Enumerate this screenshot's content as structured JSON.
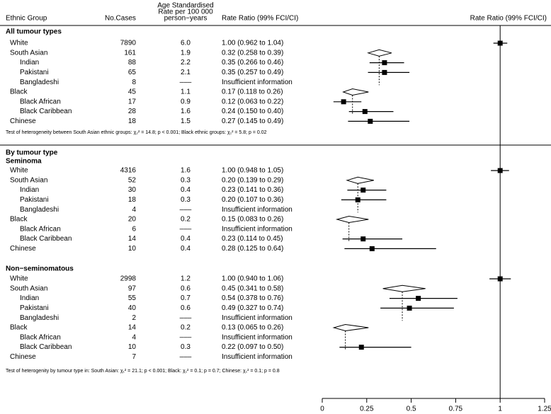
{
  "chart_data": {
    "type": "forest",
    "col_group": "Ethnic Group",
    "col_cases": "No.Cases",
    "col_rate": [
      "Age Standardised",
      "Rate per 100 000",
      "person−years"
    ],
    "col_ratio": "Rate Ratio (99% FCI/CI)",
    "axis_title": "Rate Ratio (99% FCI/CI)",
    "xlim": [
      0,
      1.25
    ],
    "xticks": [
      0,
      0.25,
      0.5,
      0.75,
      1,
      1.25
    ],
    "reference": 1,
    "color": "#000000",
    "groups": [
      {
        "heading": "All tumour types",
        "rows": [
          {
            "name": "White",
            "cases": 7890,
            "rate": "6.0",
            "ratio": 1.0,
            "lo": 0.962,
            "hi": 1.04,
            "ratio_label": "1.00 (0.962 to 1.04)"
          },
          {
            "name": "South Asian",
            "cases": 161,
            "rate": "1.9",
            "ratio": 0.32,
            "lo": 0.258,
            "hi": 0.39,
            "ratio_label": "0.32 (0.258 to 0.39)",
            "children": [
              {
                "name": "Indian",
                "cases": 88,
                "rate": "2.2",
                "ratio": 0.35,
                "lo": 0.266,
                "hi": 0.46,
                "ratio_label": "0.35 (0.266 to 0.46)"
              },
              {
                "name": "Pakistani",
                "cases": 65,
                "rate": "2.1",
                "ratio": 0.35,
                "lo": 0.257,
                "hi": 0.49,
                "ratio_label": "0.35 (0.257 to 0.49)"
              },
              {
                "name": "Bangladeshi",
                "cases": 8,
                "rate": "–––",
                "ratio": null,
                "lo": null,
                "hi": null,
                "ratio_label": "Insufficient information"
              }
            ]
          },
          {
            "name": "Black",
            "cases": 45,
            "rate": "1.1",
            "ratio": 0.17,
            "lo": 0.118,
            "hi": 0.26,
            "ratio_label": "0.17 (0.118 to 0.26)",
            "children": [
              {
                "name": "Black African",
                "cases": 17,
                "rate": "0.9",
                "ratio": 0.12,
                "lo": 0.063,
                "hi": 0.22,
                "ratio_label": "0.12 (0.063 to 0.22)"
              },
              {
                "name": "Black Caribbean",
                "cases": 28,
                "rate": "1.6",
                "ratio": 0.24,
                "lo": 0.15,
                "hi": 0.4,
                "ratio_label": "0.24 (0.150 to 0.40)"
              }
            ]
          },
          {
            "name": "Chinese",
            "cases": 18,
            "rate": "1.5",
            "ratio": 0.27,
            "lo": 0.145,
            "hi": 0.49,
            "ratio_label": "0.27 (0.145 to 0.49)"
          }
        ],
        "note": "Test of heterogeneity between South Asian ethnic groups: χ₂² = 14.8; p < 0.001; Black ethnic groups: χ₁² = 5.8; p = 0.02"
      },
      {
        "heading": "By tumour type",
        "subheading": "Seminoma",
        "rows": [
          {
            "name": "White",
            "cases": 4316,
            "rate": "1.6",
            "ratio": 1.0,
            "lo": 0.948,
            "hi": 1.05,
            "ratio_label": "1.00 (0.948 to 1.05)"
          },
          {
            "name": "South Asian",
            "cases": 52,
            "rate": "0.3",
            "ratio": 0.2,
            "lo": 0.139,
            "hi": 0.29,
            "ratio_label": "0.20 (0.139 to 0.29)",
            "children": [
              {
                "name": "Indian",
                "cases": 30,
                "rate": "0.4",
                "ratio": 0.23,
                "lo": 0.141,
                "hi": 0.36,
                "ratio_label": "0.23 (0.141 to 0.36)"
              },
              {
                "name": "Pakistani",
                "cases": 18,
                "rate": "0.3",
                "ratio": 0.2,
                "lo": 0.107,
                "hi": 0.36,
                "ratio_label": "0.20 (0.107 to 0.36)"
              },
              {
                "name": "Bangladeshi",
                "cases": 4,
                "rate": "–––",
                "ratio": null,
                "lo": null,
                "hi": null,
                "ratio_label": "Insufficient information"
              }
            ]
          },
          {
            "name": "Black",
            "cases": 20,
            "rate": "0.2",
            "ratio": 0.15,
            "lo": 0.083,
            "hi": 0.26,
            "ratio_label": "0.15 (0.083 to 0.26)",
            "children": [
              {
                "name": "Black African",
                "cases": 6,
                "rate": "–––",
                "ratio": null,
                "lo": null,
                "hi": null,
                "ratio_label": "Insufficient information"
              },
              {
                "name": "Black Caribbean",
                "cases": 14,
                "rate": "0.4",
                "ratio": 0.23,
                "lo": 0.114,
                "hi": 0.45,
                "ratio_label": "0.23 (0.114 to 0.45)"
              }
            ]
          },
          {
            "name": "Chinese",
            "cases": 10,
            "rate": "0.4",
            "ratio": 0.28,
            "lo": 0.125,
            "hi": 0.64,
            "ratio_label": "0.28 (0.125 to 0.64)"
          }
        ]
      },
      {
        "subheading": "Non−seminomatous",
        "rows": [
          {
            "name": "White",
            "cases": 2998,
            "rate": "1.2",
            "ratio": 1.0,
            "lo": 0.94,
            "hi": 1.06,
            "ratio_label": "1.00 (0.940 to 1.06)"
          },
          {
            "name": "South Asian",
            "cases": 97,
            "rate": "0.6",
            "ratio": 0.45,
            "lo": 0.341,
            "hi": 0.58,
            "ratio_label": "0.45 (0.341 to 0.58)",
            "children": [
              {
                "name": "Indian",
                "cases": 55,
                "rate": "0.7",
                "ratio": 0.54,
                "lo": 0.378,
                "hi": 0.76,
                "ratio_label": "0.54 (0.378 to 0.76)"
              },
              {
                "name": "Pakistani",
                "cases": 40,
                "rate": "0.6",
                "ratio": 0.49,
                "lo": 0.327,
                "hi": 0.74,
                "ratio_label": "0.49 (0.327 to 0.74)"
              },
              {
                "name": "Bangladeshi",
                "cases": 2,
                "rate": "–––",
                "ratio": null,
                "lo": null,
                "hi": null,
                "ratio_label": "Insufficient information"
              }
            ]
          },
          {
            "name": "Black",
            "cases": 14,
            "rate": "0.2",
            "ratio": 0.13,
            "lo": 0.065,
            "hi": 0.26,
            "ratio_label": "0.13 (0.065 to 0.26)",
            "children": [
              {
                "name": "Black African",
                "cases": 4,
                "rate": "–––",
                "ratio": null,
                "lo": null,
                "hi": null,
                "ratio_label": "Insufficient information"
              },
              {
                "name": "Black Caribbean",
                "cases": 10,
                "rate": "0.3",
                "ratio": 0.22,
                "lo": 0.097,
                "hi": 0.5,
                "ratio_label": "0.22 (0.097 to 0.50)"
              }
            ]
          },
          {
            "name": "Chinese",
            "cases": 7,
            "rate": "–––",
            "ratio": null,
            "lo": null,
            "hi": null,
            "ratio_label": "Insufficient information"
          }
        ],
        "note": "Test of heterogenity by tumour type in: South Asian: χ₁² = 21.1; p < 0.001; Black: χ₁² = 0.1; p = 0.7; Chinese: χ₁² = 0.1; p = 0.8"
      }
    ]
  }
}
